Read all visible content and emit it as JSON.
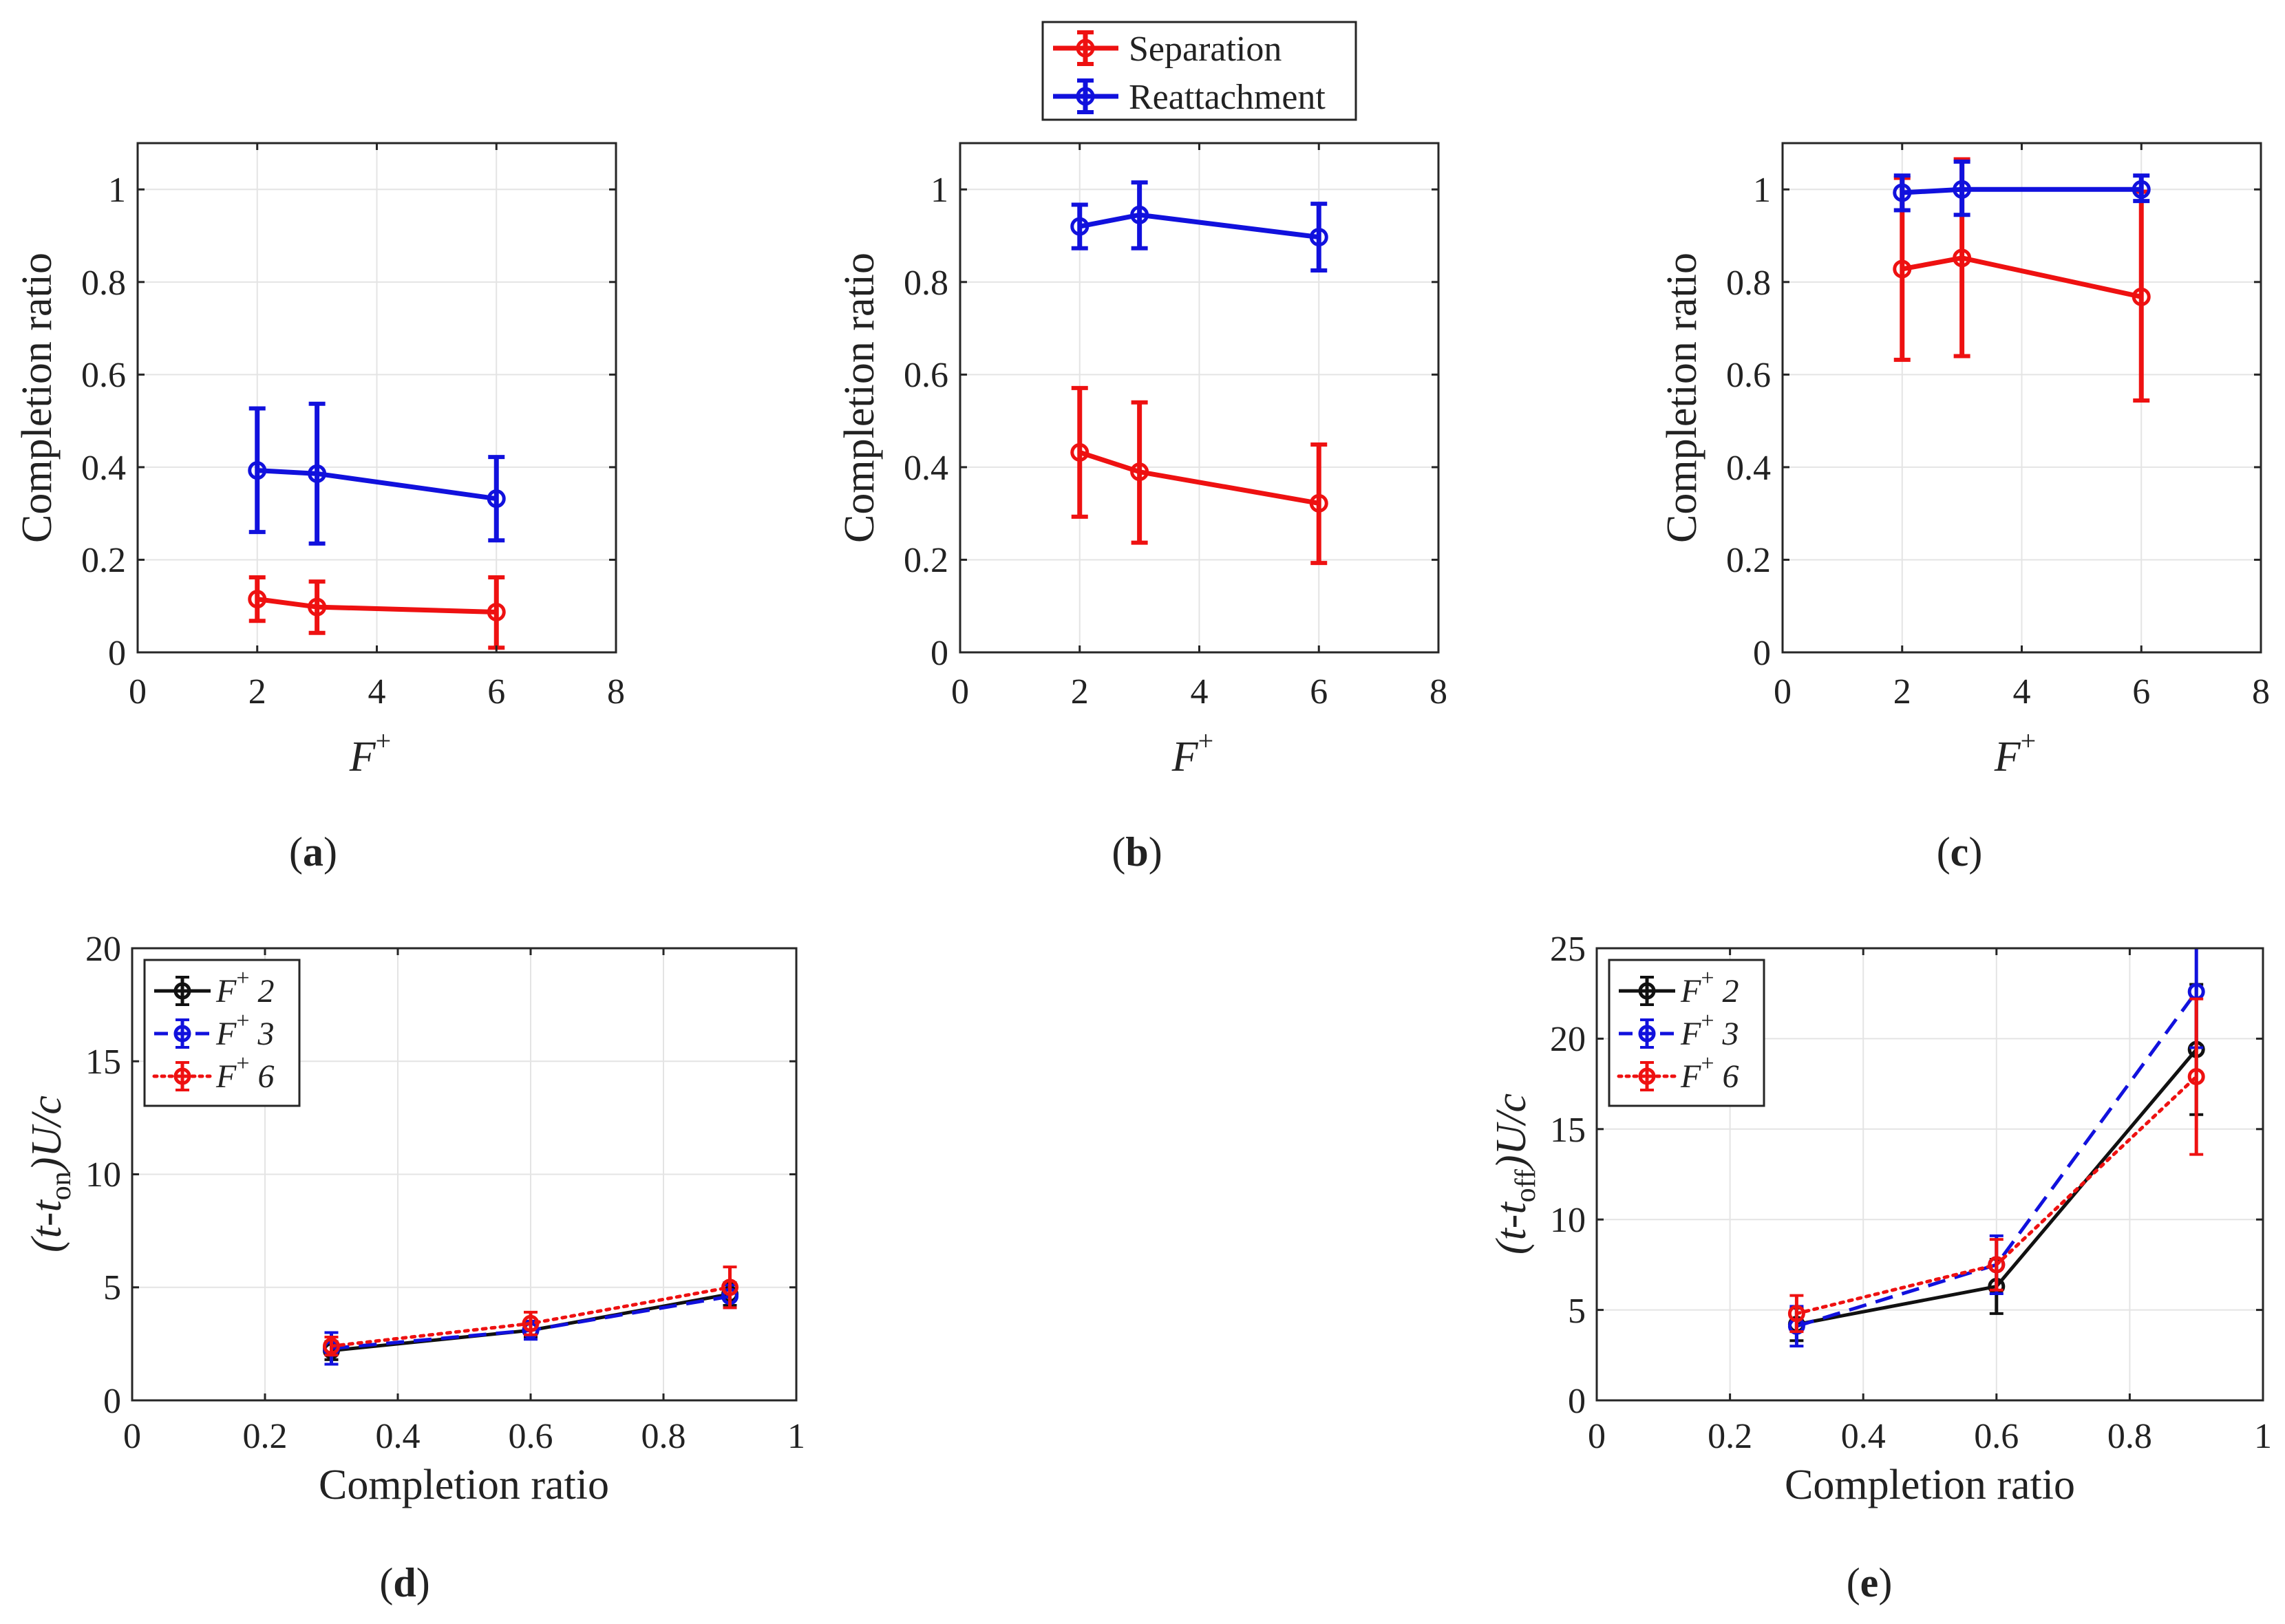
{
  "colors": {
    "separation": "#ee1111",
    "reattachment": "#1111dd",
    "f2": "#111111",
    "f3": "#1111dd",
    "f6": "#ee1111",
    "grid": "#e4e4e4",
    "axis": "#262626"
  },
  "legend_top": {
    "items": [
      {
        "key": "separation",
        "label": "Separation"
      },
      {
        "key": "reattachment",
        "label": "Reattachment"
      }
    ]
  },
  "legend_bottom": {
    "items": [
      {
        "key": "f2",
        "label": "2",
        "style": "solid"
      },
      {
        "key": "f3",
        "label": "3",
        "style": "dashed"
      },
      {
        "key": "f6",
        "label": "6",
        "style": "dotted"
      }
    ],
    "prefix_symbol": "F",
    "prefix_sup": "+"
  },
  "panel_labels": {
    "a": "a",
    "b": "b",
    "c": "c",
    "d": "d",
    "e": "e"
  },
  "top_axes": {
    "ylabel": "Completion ratio",
    "xlabel_symbol": "F",
    "xlabel_sup": "+",
    "xticks": [
      "0",
      "2",
      "4",
      "6",
      "8"
    ],
    "yticks": [
      "0",
      "0.2",
      "0.4",
      "0.6",
      "0.8",
      "1"
    ]
  },
  "bottom_axes": {
    "xlabel": "Completion ratio",
    "xticks": [
      "0",
      "0.2",
      "0.4",
      "0.6",
      "0.8",
      "1"
    ],
    "ylabel_d": {
      "open": "(t-t",
      "sub": "on",
      "close": ")U/c"
    },
    "ylabel_e": {
      "open": "(t-t",
      "sub": "off",
      "close": ")U/c"
    },
    "yticks_d": [
      "0",
      "5",
      "10",
      "15",
      "20"
    ],
    "yticks_e": [
      "0",
      "5",
      "10",
      "15",
      "20",
      "25"
    ]
  },
  "chart_data": [
    {
      "panel": "a",
      "type": "line",
      "xlabel": "F+",
      "ylabel": "Completion ratio",
      "xlim": [
        0,
        8
      ],
      "ylim": [
        0,
        1.1
      ],
      "grid": true,
      "x": [
        2,
        3,
        6
      ],
      "series": [
        {
          "name": "Separation",
          "values": [
            0.115,
            0.098,
            0.087
          ],
          "err_low": [
            0.068,
            0.042,
            0.01
          ],
          "err_high": [
            0.162,
            0.153,
            0.162
          ]
        },
        {
          "name": "Reattachment",
          "values": [
            0.393,
            0.386,
            0.332
          ],
          "err_low": [
            0.26,
            0.235,
            0.242
          ],
          "err_high": [
            0.527,
            0.537,
            0.422
          ]
        }
      ]
    },
    {
      "panel": "b",
      "type": "line",
      "xlabel": "F+",
      "ylabel": "Completion ratio",
      "xlim": [
        0,
        8
      ],
      "ylim": [
        0,
        1.1
      ],
      "grid": true,
      "x": [
        2,
        3,
        6
      ],
      "series": [
        {
          "name": "Separation",
          "values": [
            0.432,
            0.39,
            0.322
          ],
          "err_low": [
            0.293,
            0.237,
            0.193
          ],
          "err_high": [
            0.571,
            0.54,
            0.449
          ]
        },
        {
          "name": "Reattachment",
          "values": [
            0.92,
            0.945,
            0.897
          ],
          "err_low": [
            0.873,
            0.873,
            0.825
          ],
          "err_high": [
            0.967,
            1.015,
            0.969
          ]
        }
      ]
    },
    {
      "panel": "c",
      "type": "line",
      "xlabel": "F+",
      "ylabel": "Completion ratio",
      "xlim": [
        0,
        8
      ],
      "ylim": [
        0,
        1.1
      ],
      "grid": true,
      "x": [
        2,
        3,
        6
      ],
      "series": [
        {
          "name": "Separation",
          "values": [
            0.828,
            0.852,
            0.768
          ],
          "err_low": [
            0.632,
            0.64,
            0.544
          ],
          "err_high": [
            1.025,
            1.065,
            0.995
          ]
        },
        {
          "name": "Reattachment",
          "values": [
            0.993,
            1.0,
            1.0
          ],
          "err_low": [
            0.955,
            0.945,
            0.975
          ],
          "err_high": [
            1.03,
            1.06,
            1.03
          ]
        }
      ]
    },
    {
      "panel": "d",
      "type": "line",
      "xlabel": "Completion ratio",
      "ylabel": "(t-t_on)U/c",
      "xlim": [
        0,
        1
      ],
      "ylim": [
        0,
        20
      ],
      "grid": true,
      "x": [
        0.3,
        0.6,
        0.9
      ],
      "series": [
        {
          "name": "F+ 2",
          "values": [
            2.2,
            3.1,
            4.7
          ],
          "err_low": [
            1.8,
            2.8,
            4.2
          ],
          "err_high": [
            2.6,
            3.4,
            5.2
          ]
        },
        {
          "name": "F+ 3",
          "values": [
            2.3,
            3.1,
            4.6
          ],
          "err_low": [
            1.6,
            2.7,
            4.1
          ],
          "err_high": [
            3.0,
            3.5,
            5.1
          ]
        },
        {
          "name": "F+ 6",
          "values": [
            2.4,
            3.4,
            5.0
          ],
          "err_low": [
            2.0,
            2.9,
            4.1
          ],
          "err_high": [
            2.8,
            3.9,
            5.9
          ]
        }
      ]
    },
    {
      "panel": "e",
      "type": "line",
      "xlabel": "Completion ratio",
      "ylabel": "(t-t_off)U/c",
      "xlim": [
        0,
        1
      ],
      "ylim": [
        0,
        25
      ],
      "grid": true,
      "x": [
        0.3,
        0.6,
        0.9
      ],
      "series": [
        {
          "name": "F+ 2",
          "values": [
            4.2,
            6.3,
            19.4
          ],
          "err_low": [
            3.3,
            4.8,
            15.8
          ],
          "err_high": [
            5.1,
            7.8,
            23.0
          ]
        },
        {
          "name": "F+ 3",
          "values": [
            4.1,
            7.5,
            22.6
          ],
          "err_low": [
            3.0,
            5.9,
            19.5
          ],
          "err_high": [
            5.2,
            9.1,
            25.7
          ]
        },
        {
          "name": "F+ 6",
          "values": [
            4.8,
            7.5,
            17.9
          ],
          "err_low": [
            3.8,
            6.1,
            13.6
          ],
          "err_high": [
            5.8,
            8.9,
            22.2
          ]
        }
      ]
    }
  ]
}
